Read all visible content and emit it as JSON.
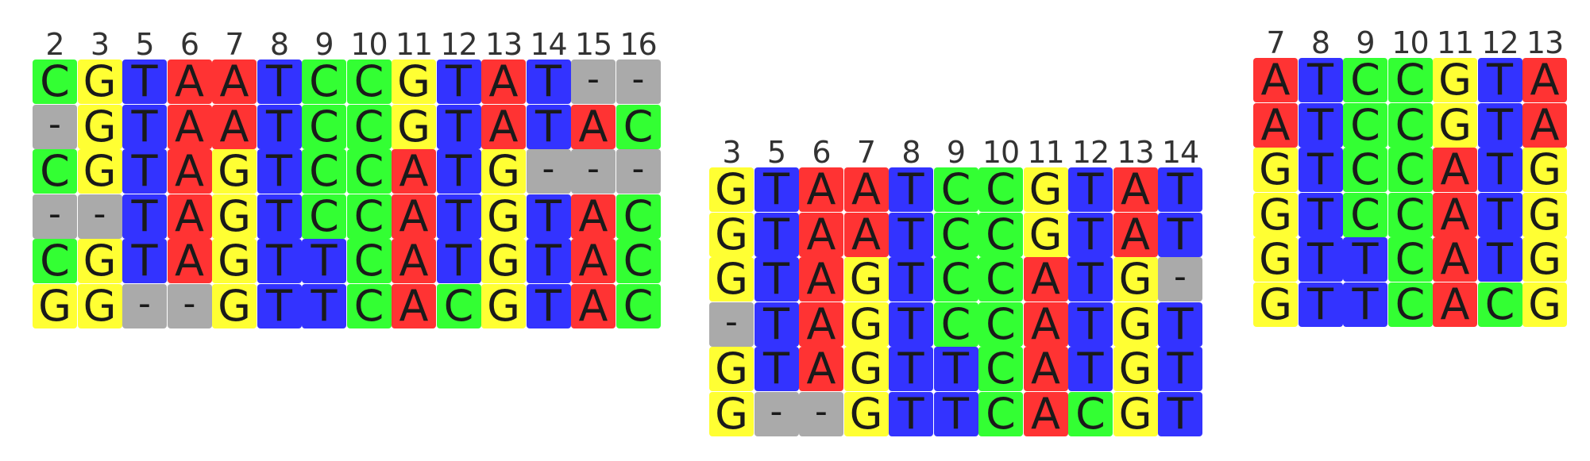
{
  "colors": {
    "A": "#ff3333",
    "C": "#33ff33",
    "G": "#ffff33",
    "T": "#3333ff",
    "-": "#aaaaaa"
  },
  "alignments": [
    {
      "name": "alignment-left",
      "positions": [
        "2",
        "3",
        "5",
        "6",
        "7",
        "8",
        "9",
        "10",
        "11",
        "12",
        "13",
        "14",
        "15",
        "16"
      ],
      "rows": [
        "CGTAATCCGTAT--",
        "-GTAATCCGTATAC",
        "CGTAGTCCATG---",
        "--TAGTCCATGTAC",
        "CGTAGTTCATGTAC",
        "GG--GTTCACGTAC"
      ]
    },
    {
      "name": "alignment-middle",
      "positions": [
        "3",
        "5",
        "6",
        "7",
        "8",
        "9",
        "10",
        "11",
        "12",
        "13",
        "14"
      ],
      "rows": [
        "GTAATCCGTAT",
        "GTAATCCGTAT",
        "GTAGTCCATG-",
        "-TAGTCCATGT",
        "GTAGTTCATGT",
        "G--GTTCACGT"
      ]
    },
    {
      "name": "alignment-right",
      "positions": [
        "7",
        "8",
        "9",
        "10",
        "11",
        "12",
        "13"
      ],
      "rows": [
        "ATCCGTA",
        "ATCCGTA",
        "GTCCATG",
        "GTCCATG",
        "GTTCATG",
        "GTTCACG"
      ]
    }
  ]
}
